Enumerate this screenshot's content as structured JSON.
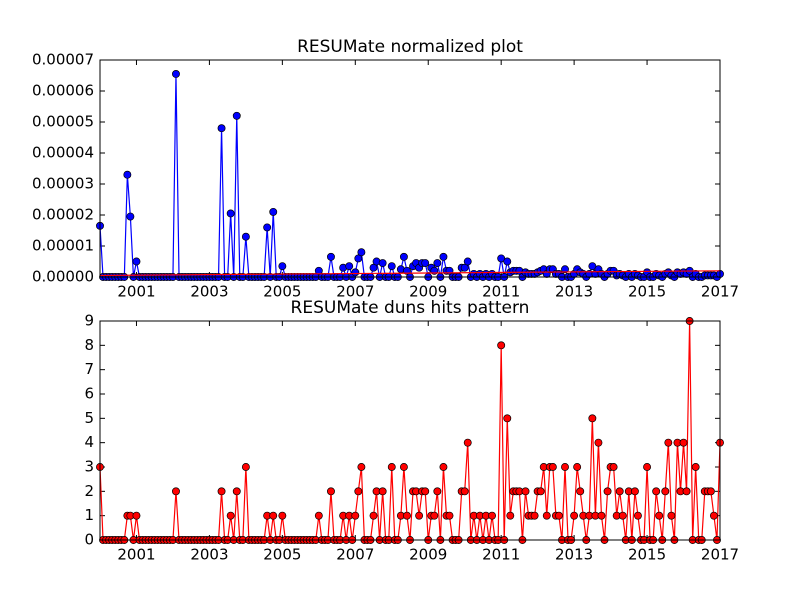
{
  "chart_data": [
    {
      "type": "line",
      "title": "RESUMate normalized plot",
      "x": [
        2000,
        2000.083,
        2000.167,
        2000.25,
        2000.333,
        2000.417,
        2000.5,
        2000.583,
        2000.667,
        2000.75,
        2000.833,
        2000.917,
        2001,
        2001.083,
        2001.167,
        2001.25,
        2001.333,
        2001.417,
        2001.5,
        2001.583,
        2001.667,
        2001.75,
        2001.833,
        2001.917,
        2002,
        2002.083,
        2002.167,
        2002.25,
        2002.333,
        2002.417,
        2002.5,
        2002.583,
        2002.667,
        2002.75,
        2002.833,
        2002.917,
        2003,
        2003.083,
        2003.167,
        2003.25,
        2003.333,
        2003.417,
        2003.5,
        2003.583,
        2003.667,
        2003.75,
        2003.833,
        2003.917,
        2004,
        2004.083,
        2004.167,
        2004.25,
        2004.333,
        2004.417,
        2004.5,
        2004.583,
        2004.667,
        2004.75,
        2004.833,
        2004.917,
        2005,
        2005.083,
        2005.167,
        2005.25,
        2005.333,
        2005.417,
        2005.5,
        2005.583,
        2005.667,
        2005.75,
        2005.833,
        2005.917,
        2006,
        2006.083,
        2006.167,
        2006.25,
        2006.333,
        2006.417,
        2006.5,
        2006.583,
        2006.667,
        2006.75,
        2006.833,
        2006.917,
        2007,
        2007.083,
        2007.167,
        2007.25,
        2007.333,
        2007.417,
        2007.5,
        2007.583,
        2007.667,
        2007.75,
        2007.833,
        2007.917,
        2008,
        2008.083,
        2008.167,
        2008.25,
        2008.333,
        2008.417,
        2008.5,
        2008.583,
        2008.667,
        2008.75,
        2008.833,
        2008.917,
        2009,
        2009.083,
        2009.167,
        2009.25,
        2009.333,
        2009.417,
        2009.5,
        2009.583,
        2009.667,
        2009.75,
        2009.833,
        2009.917,
        2010,
        2010.083,
        2010.167,
        2010.25,
        2010.333,
        2010.417,
        2010.5,
        2010.583,
        2010.667,
        2010.75,
        2010.833,
        2010.917,
        2011,
        2011.083,
        2011.167,
        2011.25,
        2011.333,
        2011.417,
        2011.5,
        2011.583,
        2011.667,
        2011.75,
        2011.833,
        2011.917,
        2012,
        2012.083,
        2012.167,
        2012.25,
        2012.333,
        2012.417,
        2012.5,
        2012.583,
        2012.667,
        2012.75,
        2012.833,
        2012.917,
        2013,
        2013.083,
        2013.167,
        2013.25,
        2013.333,
        2013.417,
        2013.5,
        2013.583,
        2013.667,
        2013.75,
        2013.833,
        2013.917,
        2014,
        2014.083,
        2014.167,
        2014.25,
        2014.333,
        2014.417,
        2014.5,
        2014.583,
        2014.667,
        2014.75,
        2014.833,
        2014.917,
        2015,
        2015.083,
        2015.167,
        2015.25,
        2015.333,
        2015.417,
        2015.5,
        2015.583,
        2015.667,
        2015.75,
        2015.833,
        2015.917,
        2016,
        2016.083,
        2016.167,
        2016.25,
        2016.333,
        2016.417,
        2016.5,
        2016.583,
        2016.667,
        2016.75,
        2016.833,
        2016.917,
        2017
      ],
      "series": [
        {
          "color": "#0000ff",
          "marker": true,
          "marker_edge": "#000000",
          "values": [
            1.65e-05,
            0,
            0,
            0,
            0,
            0,
            0,
            0,
            0,
            3.3e-05,
            1.95e-05,
            0,
            5e-06,
            0,
            0,
            0,
            0,
            0,
            0,
            0,
            0,
            0,
            0,
            0,
            0,
            6.55e-05,
            0,
            0,
            0,
            0,
            0,
            0,
            0,
            0,
            0,
            0,
            0,
            0,
            0,
            0,
            4.8e-05,
            0,
            0,
            2.05e-05,
            0,
            5.2e-05,
            0,
            0,
            1.3e-05,
            0,
            0,
            0,
            0,
            0,
            0,
            1.6e-05,
            0,
            2.1e-05,
            0,
            0,
            3.5e-06,
            0,
            0,
            0,
            0,
            0,
            0,
            0,
            0,
            0,
            0,
            0,
            2e-06,
            0,
            0,
            0,
            6.5e-06,
            0,
            0,
            0,
            3e-06,
            0,
            3.5e-06,
            0,
            1.5e-06,
            6e-06,
            8e-06,
            0,
            0,
            0,
            3e-06,
            5e-06,
            0,
            4.5e-06,
            0,
            0,
            3.5e-06,
            0,
            0,
            2.5e-06,
            6.5e-06,
            2e-06,
            0,
            3.5e-06,
            4.5e-06,
            3e-06,
            4.5e-06,
            4.5e-06,
            0,
            3e-06,
            2e-06,
            4.5e-06,
            0,
            6.5e-06,
            2e-06,
            2e-06,
            0,
            0,
            0,
            3e-06,
            3e-06,
            5e-06,
            0,
            1e-06,
            0,
            1e-06,
            0,
            1e-06,
            0,
            1e-06,
            0,
            0,
            6e-06,
            0,
            5e-06,
            1.5e-06,
            2e-06,
            2e-06,
            2e-06,
            0,
            1.5e-06,
            1e-06,
            1e-06,
            1e-06,
            1.5e-06,
            2e-06,
            2.5e-06,
            1e-06,
            2.5e-06,
            2.5e-06,
            1e-06,
            1e-06,
            0,
            2.5e-06,
            0,
            0,
            1e-06,
            2.5e-06,
            1.5e-06,
            1e-06,
            0,
            1e-06,
            3.5e-06,
            1e-06,
            2.5e-06,
            1e-06,
            0,
            1e-06,
            2e-06,
            2e-06,
            5e-07,
            1e-06,
            5e-07,
            0,
            1e-06,
            0,
            1e-06,
            5e-07,
            0,
            0,
            1.5e-06,
            0,
            0,
            1e-06,
            5e-07,
            0,
            1e-06,
            1.5e-06,
            5e-07,
            0,
            1.5e-06,
            1e-06,
            1.5e-06,
            1e-06,
            2e-06,
            0,
            1e-06,
            0,
            0,
            5e-07,
            5e-07,
            5e-07,
            5e-07,
            0,
            1e-06
          ]
        },
        {
          "color": "#ff0000",
          "marker": false,
          "x": [
            2000,
            2017
          ],
          "values": [
            5e-07,
            2e-06
          ]
        }
      ],
      "xlim": [
        2000,
        2017
      ],
      "xticks": [
        2001,
        2003,
        2005,
        2007,
        2009,
        2011,
        2013,
        2015,
        2017
      ],
      "ylim": [
        0,
        7e-05
      ],
      "yticks": [
        {
          "value": 0,
          "label": "0.00000"
        },
        {
          "value": 1e-05,
          "label": "0.00001"
        },
        {
          "value": 2e-05,
          "label": "0.00002"
        },
        {
          "value": 3e-05,
          "label": "0.00003"
        },
        {
          "value": 4e-05,
          "label": "0.00004"
        },
        {
          "value": 5e-05,
          "label": "0.00005"
        },
        {
          "value": 6e-05,
          "label": "0.00006"
        },
        {
          "value": 7e-05,
          "label": "0.00007"
        }
      ],
      "grid": false
    },
    {
      "type": "line",
      "title": "RESUMate duns hits pattern",
      "x": [
        2000,
        2000.083,
        2000.167,
        2000.25,
        2000.333,
        2000.417,
        2000.5,
        2000.583,
        2000.667,
        2000.75,
        2000.833,
        2000.917,
        2001,
        2001.083,
        2001.167,
        2001.25,
        2001.333,
        2001.417,
        2001.5,
        2001.583,
        2001.667,
        2001.75,
        2001.833,
        2001.917,
        2002,
        2002.083,
        2002.167,
        2002.25,
        2002.333,
        2002.417,
        2002.5,
        2002.583,
        2002.667,
        2002.75,
        2002.833,
        2002.917,
        2003,
        2003.083,
        2003.167,
        2003.25,
        2003.333,
        2003.417,
        2003.5,
        2003.583,
        2003.667,
        2003.75,
        2003.833,
        2003.917,
        2004,
        2004.083,
        2004.167,
        2004.25,
        2004.333,
        2004.417,
        2004.5,
        2004.583,
        2004.667,
        2004.75,
        2004.833,
        2004.917,
        2005,
        2005.083,
        2005.167,
        2005.25,
        2005.333,
        2005.417,
        2005.5,
        2005.583,
        2005.667,
        2005.75,
        2005.833,
        2005.917,
        2006,
        2006.083,
        2006.167,
        2006.25,
        2006.333,
        2006.417,
        2006.5,
        2006.583,
        2006.667,
        2006.75,
        2006.833,
        2006.917,
        2007,
        2007.083,
        2007.167,
        2007.25,
        2007.333,
        2007.417,
        2007.5,
        2007.583,
        2007.667,
        2007.75,
        2007.833,
        2007.917,
        2008,
        2008.083,
        2008.167,
        2008.25,
        2008.333,
        2008.417,
        2008.5,
        2008.583,
        2008.667,
        2008.75,
        2008.833,
        2008.917,
        2009,
        2009.083,
        2009.167,
        2009.25,
        2009.333,
        2009.417,
        2009.5,
        2009.583,
        2009.667,
        2009.75,
        2009.833,
        2009.917,
        2010,
        2010.083,
        2010.167,
        2010.25,
        2010.333,
        2010.417,
        2010.5,
        2010.583,
        2010.667,
        2010.75,
        2010.833,
        2010.917,
        2011,
        2011.083,
        2011.167,
        2011.25,
        2011.333,
        2011.417,
        2011.5,
        2011.583,
        2011.667,
        2011.75,
        2011.833,
        2011.917,
        2012,
        2012.083,
        2012.167,
        2012.25,
        2012.333,
        2012.417,
        2012.5,
        2012.583,
        2012.667,
        2012.75,
        2012.833,
        2012.917,
        2013,
        2013.083,
        2013.167,
        2013.25,
        2013.333,
        2013.417,
        2013.5,
        2013.583,
        2013.667,
        2013.75,
        2013.833,
        2013.917,
        2014,
        2014.083,
        2014.167,
        2014.25,
        2014.333,
        2014.417,
        2014.5,
        2014.583,
        2014.667,
        2014.75,
        2014.833,
        2014.917,
        2015,
        2015.083,
        2015.167,
        2015.25,
        2015.333,
        2015.417,
        2015.5,
        2015.583,
        2015.667,
        2015.75,
        2015.833,
        2015.917,
        2016,
        2016.083,
        2016.167,
        2016.25,
        2016.333,
        2016.417,
        2016.5,
        2016.583,
        2016.667,
        2016.75,
        2016.833,
        2016.917,
        2017
      ],
      "series": [
        {
          "color": "#ff0000",
          "marker": true,
          "marker_edge": "#000000",
          "values": [
            3,
            0,
            0,
            0,
            0,
            0,
            0,
            0,
            0,
            1,
            1,
            0,
            1,
            0,
            0,
            0,
            0,
            0,
            0,
            0,
            0,
            0,
            0,
            0,
            0,
            2,
            0,
            0,
            0,
            0,
            0,
            0,
            0,
            0,
            0,
            0,
            0,
            0,
            0,
            0,
            2,
            0,
            0,
            1,
            0,
            2,
            0,
            0,
            3,
            0,
            0,
            0,
            0,
            0,
            0,
            1,
            0,
            1,
            0,
            0,
            1,
            0,
            0,
            0,
            0,
            0,
            0,
            0,
            0,
            0,
            0,
            0,
            1,
            0,
            0,
            0,
            2,
            0,
            0,
            0,
            1,
            0,
            1,
            0,
            1,
            2,
            3,
            0,
            0,
            0,
            1,
            2,
            0,
            2,
            0,
            0,
            3,
            0,
            0,
            1,
            3,
            1,
            0,
            2,
            2,
            1,
            2,
            2,
            0,
            1,
            1,
            2,
            0,
            3,
            1,
            1,
            0,
            0,
            0,
            2,
            2,
            4,
            0,
            1,
            0,
            1,
            0,
            1,
            0,
            1,
            0,
            0,
            8,
            0,
            5,
            1,
            2,
            2,
            2,
            0,
            2,
            1,
            1,
            1,
            2,
            2,
            3,
            1,
            3,
            3,
            1,
            1,
            0,
            3,
            0,
            0,
            1,
            3,
            2,
            1,
            0,
            1,
            5,
            1,
            4,
            1,
            0,
            2,
            3,
            3,
            1,
            2,
            1,
            0,
            2,
            0,
            2,
            1,
            0,
            0,
            3,
            0,
            0,
            2,
            1,
            0,
            2,
            4,
            1,
            0,
            4,
            2,
            4,
            2,
            9,
            0,
            3,
            0,
            0,
            2,
            2,
            2,
            1,
            0,
            4
          ]
        }
      ],
      "xlim": [
        2000,
        2017
      ],
      "xticks": [
        2001,
        2003,
        2005,
        2007,
        2009,
        2011,
        2013,
        2015,
        2017
      ],
      "ylim": [
        0,
        9
      ],
      "yticks": [
        0,
        1,
        2,
        3,
        4,
        5,
        6,
        7,
        8,
        9
      ],
      "grid": false
    }
  ]
}
